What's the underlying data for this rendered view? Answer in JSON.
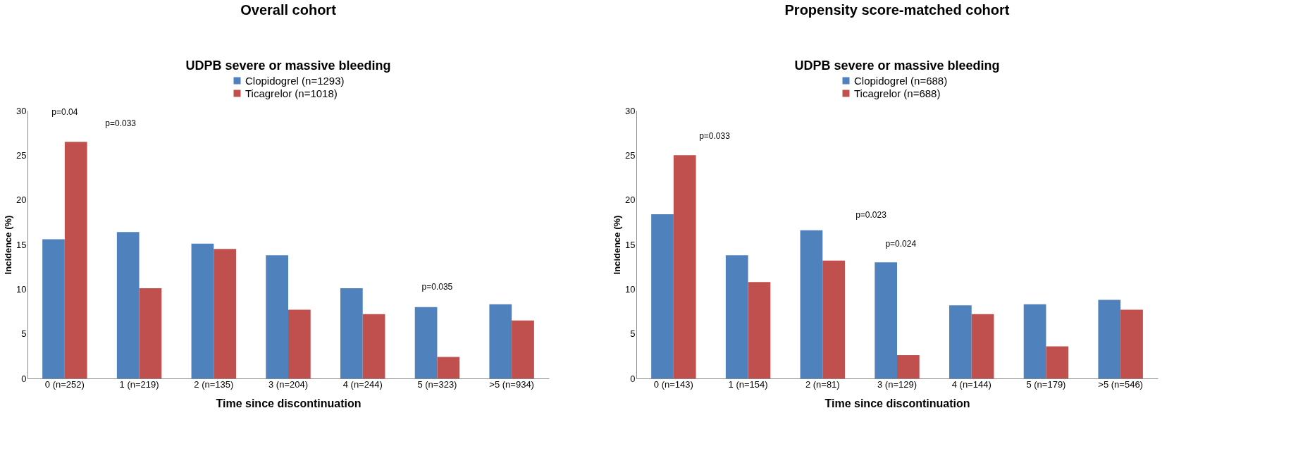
{
  "chart_data": [
    {
      "type": "bar",
      "title": "Overall cohort",
      "subtitle": "UDPB severe or massive bleeding",
      "xlabel": "Time since discontinuation",
      "ylabel": "Incidence  (%)",
      "categories": [
        "0 (n=252)",
        "1  (n=219)",
        "2 (n=135)",
        "3 (n=204)",
        "4 (n=244)",
        "5 (n=323)",
        ">5 (n=934)"
      ],
      "series": [
        {
          "name": "Clopidogrel (n=1293)",
          "color": "#4f81bd",
          "values": [
            15.6,
            16.4,
            15.1,
            13.8,
            10.1,
            8.0,
            8.3
          ]
        },
        {
          "name": "Ticagrelor (n=1018)",
          "color": "#c0504d",
          "values": [
            26.5,
            10.1,
            14.5,
            7.7,
            7.2,
            2.4,
            6.5
          ]
        }
      ],
      "ylim": [
        0,
        30
      ],
      "yticks": [
        0,
        5,
        10,
        15,
        20,
        25,
        30
      ],
      "grid": false,
      "legend": "top",
      "annotations": [
        "p=0.04",
        "p=0.033",
        "p=0.035"
      ]
    },
    {
      "type": "bar",
      "title": "Propensity score-matched  cohort",
      "subtitle": "UDPB severe or massive bleeding",
      "xlabel": "Time since discontinuation",
      "ylabel": "Incidence  (%)",
      "categories": [
        "0 (n=143)",
        "1  (n=154)",
        "2 (n=81)",
        "3 (n=129)",
        "4 (n=144)",
        "5 (n=179)",
        ">5 (n=546)"
      ],
      "series": [
        {
          "name": "Clopidogrel (n=688)",
          "color": "#4f81bd",
          "values": [
            18.4,
            13.8,
            16.6,
            13.0,
            8.2,
            8.3,
            8.8
          ]
        },
        {
          "name": "Ticagrelor (n=688)",
          "color": "#c0504d",
          "values": [
            25.0,
            10.8,
            13.2,
            2.6,
            7.2,
            3.6,
            7.7
          ]
        }
      ],
      "ylim": [
        0,
        30
      ],
      "yticks": [
        0,
        5,
        10,
        15,
        20,
        25,
        30
      ],
      "grid": false,
      "legend": "top",
      "annotations": [
        "p=0.033",
        "p=0.023",
        "p=0.024"
      ]
    }
  ]
}
